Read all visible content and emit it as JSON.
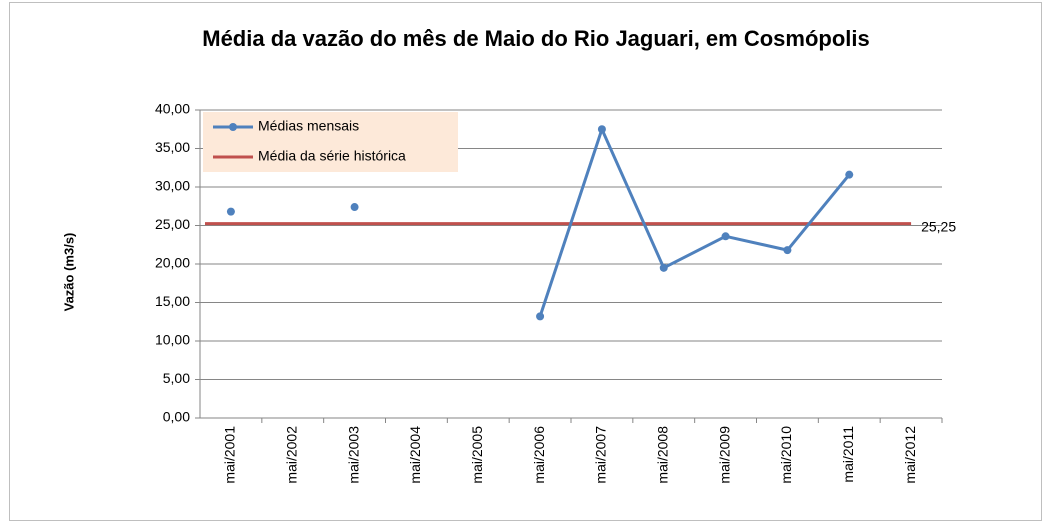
{
  "chart_data": {
    "type": "line",
    "title": "Média da vazão do mês de Maio do Rio Jaguari, em Cosmópolis",
    "y_label": "Vazão (m3/s)",
    "categories": [
      "mai/2001",
      "mai/2002",
      "mai/2003",
      "mai/2004",
      "mai/2005",
      "mai/2006",
      "mai/2007",
      "mai/2008",
      "mai/2009",
      "mai/2010",
      "mai/2011",
      "mai/2012"
    ],
    "series": [
      {
        "name": "Médias mensais",
        "color": "#4f81bd",
        "values": [
          26.8,
          null,
          27.4,
          null,
          null,
          13.2,
          37.5,
          19.5,
          23.6,
          21.8,
          31.6,
          null
        ]
      }
    ],
    "reference_line": {
      "name": "Média da série histórica",
      "color": "#c0504d",
      "value": 25.25,
      "label": "25,25"
    },
    "ylim": [
      0,
      40
    ],
    "yticks": [
      {
        "value": 0,
        "label": "0,00"
      },
      {
        "value": 5,
        "label": "5,00"
      },
      {
        "value": 10,
        "label": "10,00"
      },
      {
        "value": 15,
        "label": "15,00"
      },
      {
        "value": 20,
        "label": "20,00"
      },
      {
        "value": 25,
        "label": "25,00"
      },
      {
        "value": 30,
        "label": "30,00"
      },
      {
        "value": 35,
        "label": "35,00"
      },
      {
        "value": 40,
        "label": "40,00"
      }
    ],
    "grid": true,
    "legend": "top-left"
  }
}
